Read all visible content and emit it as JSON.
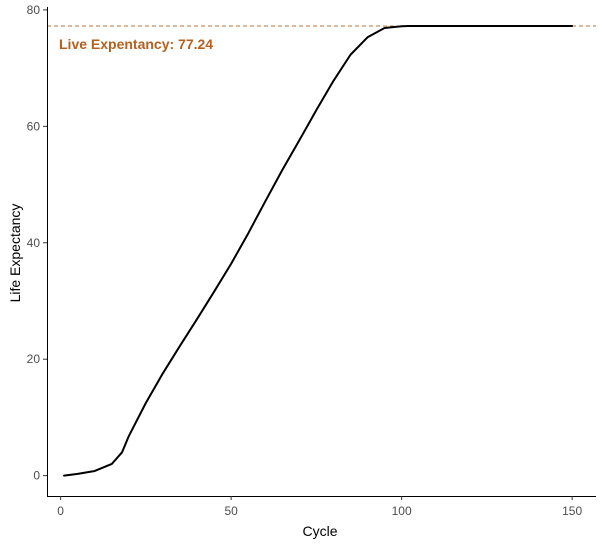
{
  "chart_data": {
    "type": "line",
    "xlabel": "Cycle",
    "ylabel": "Life Expectancy",
    "xlim": [
      -4,
      157
    ],
    "ylim": [
      -3.5,
      80.5
    ],
    "xticks": [
      0,
      50,
      100,
      150
    ],
    "yticks": [
      0,
      20,
      40,
      60,
      80
    ],
    "grid": false,
    "series": [
      {
        "color": "#000000",
        "x": [
          1,
          5,
          10,
          15,
          18,
          20,
          25,
          30,
          35,
          40,
          45,
          50,
          55,
          60,
          65,
          70,
          75,
          80,
          85,
          90,
          95,
          100,
          102,
          104,
          106,
          110,
          120,
          130,
          140,
          150
        ],
        "y": [
          0,
          0.3,
          0.8,
          2.0,
          4.0,
          6.8,
          12.5,
          17.6,
          22.3,
          26.9,
          31.6,
          36.4,
          41.6,
          47.1,
          52.5,
          57.6,
          62.8,
          67.8,
          72.3,
          75.3,
          76.9,
          77.2,
          77.23,
          77.24,
          77.24,
          77.24,
          77.24,
          77.24,
          77.24,
          77.24
        ]
      }
    ],
    "reference_line": {
      "y": 77.24,
      "color": "#b8733a",
      "style": "dashed"
    },
    "annotation": {
      "text": "Live Expentancy: 77.24",
      "color": "#b5601f"
    }
  }
}
